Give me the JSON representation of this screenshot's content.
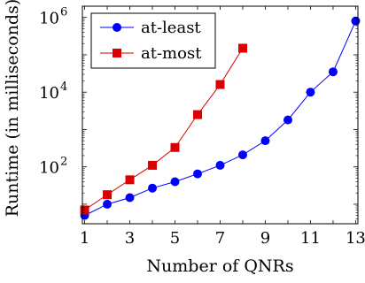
{
  "chart_data": {
    "type": "line",
    "title": "",
    "xlabel": "Number of QNRs",
    "ylabel": "Runtime (in milliseconds)",
    "x_scale": "linear",
    "y_scale": "log",
    "xlim": [
      0.9,
      13.1
    ],
    "ylim": [
      3,
      2000000
    ],
    "xticks": [
      1,
      3,
      5,
      7,
      9,
      11,
      13
    ],
    "xtick_labels": [
      "1",
      "3",
      "5",
      "7",
      "9",
      "11",
      "13"
    ],
    "yticks": [
      100,
      10000,
      1000000
    ],
    "ytick_labels": [
      {
        "base": "10",
        "exp": "2"
      },
      {
        "base": "10",
        "exp": "4"
      },
      {
        "base": "10",
        "exp": "6"
      }
    ],
    "legend_position": "top-left",
    "grid": false,
    "series": [
      {
        "name": "at-least",
        "color": "#0000ff",
        "marker": "circle",
        "x": [
          1,
          2,
          3,
          4,
          5,
          6,
          7,
          8,
          9,
          10,
          11,
          12,
          13
        ],
        "y": [
          5,
          10,
          15,
          27,
          40,
          65,
          110,
          210,
          500,
          1800,
          10000,
          35000,
          800000
        ]
      },
      {
        "name": "at-most",
        "color": "#dd0000",
        "marker": "square",
        "x": [
          1,
          2,
          3,
          4,
          5,
          6,
          7,
          8
        ],
        "y": [
          7,
          18,
          45,
          110,
          330,
          2500,
          16000,
          150000
        ]
      }
    ]
  }
}
